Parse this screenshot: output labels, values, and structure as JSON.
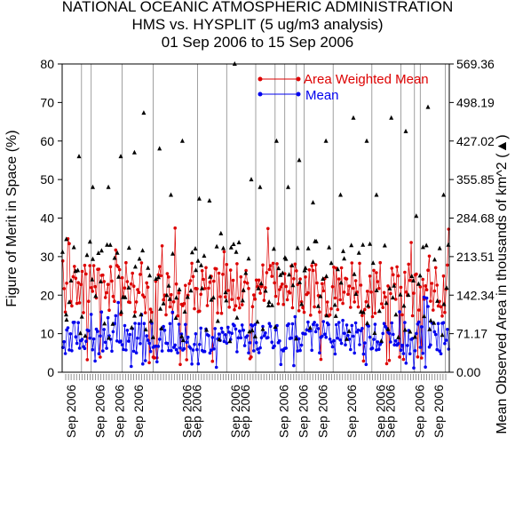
{
  "title_lines": [
    "NATIONAL OCEANIC ATMOSPHERIC ADMINISTRATION",
    "HMS vs. HYSPLIT (5 ug/m3 analysis)",
    "01 Sep 2006 to 15 Sep 2006"
  ],
  "colors": {
    "red": "#dd0000",
    "blue": "#0000ee",
    "black": "#000000",
    "grid": "#888888"
  },
  "chart_data": {
    "type": "line",
    "title": "HMS vs. HYSPLIT (5 ug/m3 analysis)",
    "ylabel": "Figure of Merit in Space (%)",
    "y2label": "Mean Observed Area in thousands of km^2 (▲)",
    "ylim": [
      0,
      80
    ],
    "y2lim": [
      0,
      569.36
    ],
    "y_ticks": [
      "0",
      "10",
      "20",
      "30",
      "40",
      "50",
      "60",
      "70",
      "80"
    ],
    "y2_ticks": [
      "0.00",
      "71.17",
      "142.34",
      "213.51",
      "284.68",
      "355.85",
      "427.02",
      "498.19",
      "569.36"
    ],
    "x_tick_label": "Sep 2006",
    "x_tick_labels": [
      "Sep 2006",
      "Sep 2006",
      "Sep 2006",
      "Sep 2006",
      "Sep 2006",
      "Sep 2006",
      "Sep 2006",
      "Sep 2006",
      "Sep 2006",
      "Sep 2006",
      "Sep 2006",
      "Sep 2006",
      "Sep 2006",
      "Sep 2006",
      "Sep 2006",
      "Sep 2006"
    ],
    "x_tick_positions": [
      0.5,
      2.0,
      3.0,
      4.0,
      6.5,
      7.0,
      9.0,
      9.5,
      11.5,
      12.5,
      13.5,
      15.0,
      16.5,
      17.0,
      18.5,
      19.5
    ],
    "vline_positions": [
      0.0,
      1.0,
      1.5,
      3.1,
      4.7,
      7.0,
      8.5,
      10.0,
      11.0,
      11.5,
      12.1,
      12.5,
      14.0,
      16.0,
      17.5,
      18.2,
      18.5,
      19.8
    ],
    "x_range": [
      0,
      20
    ],
    "n_points": 300,
    "legend": [
      {
        "label": "Area Weighted Mean",
        "color": "#dd0000"
      },
      {
        "label": "Mean",
        "color": "#0000ee"
      }
    ],
    "legend_position": "top-right",
    "series": [
      {
        "name": "Area Weighted Mean",
        "color": "#dd0000",
        "base": 20,
        "amp": 10,
        "min": 2,
        "max": 41
      },
      {
        "name": "Mean",
        "color": "#0000ee",
        "base": 8,
        "amp": 6,
        "min": 1,
        "max": 23
      }
    ],
    "triangles": {
      "name": "Mean Observed Area",
      "count": 180,
      "high_values": [
        34.5,
        56,
        48,
        48,
        56,
        57,
        67.3,
        58,
        46,
        60,
        45,
        44.5,
        36,
        80,
        50,
        48,
        60,
        48,
        55,
        44,
        60,
        46,
        66,
        60,
        46,
        66,
        62.5,
        40.5,
        68.8,
        46
      ]
    }
  }
}
